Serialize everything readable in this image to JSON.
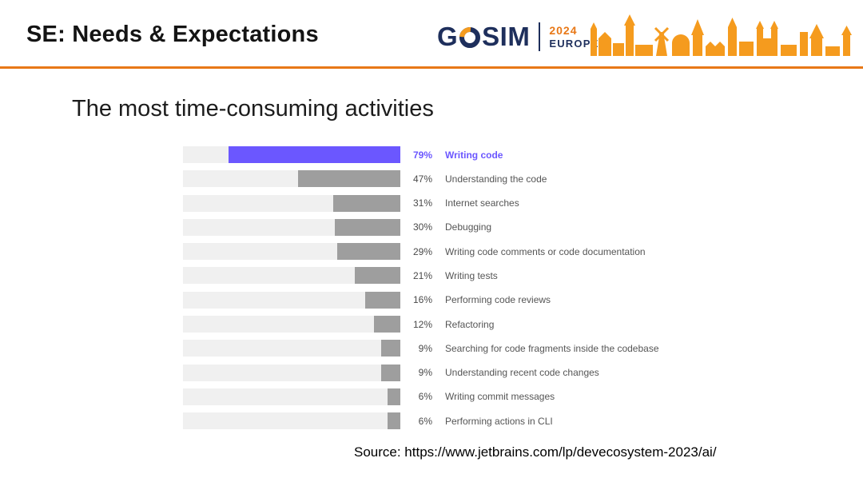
{
  "header": {
    "title": "SE: Needs & Expectations",
    "logo": {
      "g": "G",
      "sim": "SIM",
      "year": "2024",
      "region": "EUROPE"
    }
  },
  "main": {
    "heading": "The most time-consuming activities",
    "source": "Source: https://www.jetbrains.com/lp/devecosystem-2023/ai/"
  },
  "chart_data": {
    "type": "bar",
    "orientation": "horizontal-right-aligned",
    "title": "The most time-consuming activities",
    "categories": [
      "Writing code",
      "Understanding the code",
      "Internet searches",
      "Debugging",
      "Writing code comments or code documentation",
      "Writing tests",
      "Performing code reviews",
      "Refactoring",
      "Searching for code fragments inside the codebase",
      "Understanding recent code changes",
      "Writing commit messages",
      "Performing actions in CLI"
    ],
    "values": [
      79,
      47,
      31,
      30,
      29,
      21,
      16,
      12,
      9,
      9,
      6,
      6
    ],
    "value_suffix": "%",
    "xlim": [
      0,
      100
    ],
    "highlight_index": 0,
    "colors": {
      "highlight": "#6B57FF",
      "bar": "#9E9E9E",
      "track": "#F0F0F0"
    },
    "legend": "none",
    "grid": false
  },
  "colors": {
    "divider_orange": "#E87817",
    "skyline_orange": "#F59B1E",
    "logo_navy": "#1E2F5C"
  }
}
